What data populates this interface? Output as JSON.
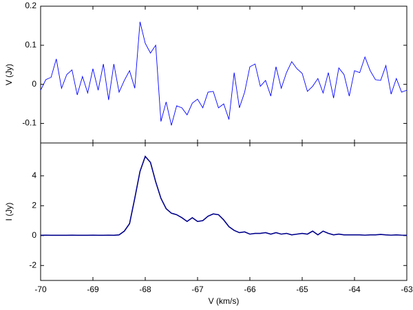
{
  "chart_data": [
    {
      "type": "line",
      "ylabel": "V (Jy)",
      "x": [
        -70,
        -69.9,
        -69.8,
        -69.7,
        -69.6,
        -69.5,
        -69.4,
        -69.3,
        -69.2,
        -69.1,
        -69,
        -68.9,
        -68.8,
        -68.7,
        -68.6,
        -68.5,
        -68.4,
        -68.3,
        -68.2,
        -68.1,
        -68,
        -67.9,
        -67.8,
        -67.7,
        -67.6,
        -67.5,
        -67.4,
        -67.3,
        -67.2,
        -67.1,
        -67,
        -66.9,
        -66.8,
        -66.7,
        -66.6,
        -66.5,
        -66.4,
        -66.3,
        -66.2,
        -66.1,
        -66,
        -65.9,
        -65.8,
        -65.7,
        -65.6,
        -65.5,
        -65.4,
        -65.3,
        -65.2,
        -65.1,
        -65,
        -64.9,
        -64.8,
        -64.7,
        -64.6,
        -64.5,
        -64.4,
        -64.3,
        -64.2,
        -64.1,
        -64,
        -63.9,
        -63.8,
        -63.7,
        -63.6,
        -63.5,
        -63.4,
        -63.3,
        -63.2,
        -63.1,
        -63
      ],
      "series": [
        {
          "color": "#0000ff",
          "values": [
            -0.015,
            0.012,
            0.018,
            0.065,
            -0.01,
            0.025,
            0.037,
            -0.027,
            0.02,
            -0.022,
            0.04,
            -0.015,
            0.052,
            -0.04,
            0.052,
            -0.02,
            0.01,
            0.035,
            -0.01,
            0.16,
            0.105,
            0.08,
            0.1,
            -0.095,
            -0.045,
            -0.105,
            -0.055,
            -0.06,
            -0.078,
            -0.048,
            -0.038,
            -0.06,
            -0.02,
            -0.018,
            -0.06,
            -0.05,
            -0.09,
            0.03,
            -0.06,
            -0.02,
            0.045,
            0.052,
            -0.005,
            0.01,
            -0.03,
            0.045,
            -0.01,
            0.03,
            0.058,
            0.04,
            0.028,
            -0.018,
            -0.005,
            0.015,
            -0.022,
            0.03,
            -0.035,
            0.042,
            0.025,
            -0.03,
            0.035,
            0.03,
            0.07,
            0.035,
            0.012,
            0.01,
            0.048,
            -0.025,
            0.015,
            -0.02,
            -0.015
          ]
        }
      ],
      "xlim": [
        -70,
        -63
      ],
      "xticks": [
        -70,
        -69,
        -68,
        -67,
        -66,
        -65,
        -64,
        -63
      ],
      "ylim": [
        -0.15,
        0.2
      ],
      "yticks": [
        -0.1,
        0,
        0.1,
        0.2
      ]
    },
    {
      "type": "line",
      "ylabel": "I (Jy)",
      "xlabel": "V (km/s)",
      "x": [
        -70,
        -69.9,
        -69.8,
        -69.7,
        -69.6,
        -69.5,
        -69.4,
        -69.3,
        -69.2,
        -69.1,
        -69,
        -68.9,
        -68.8,
        -68.7,
        -68.6,
        -68.5,
        -68.4,
        -68.3,
        -68.2,
        -68.1,
        -68,
        -67.9,
        -67.8,
        -67.7,
        -67.6,
        -67.5,
        -67.4,
        -67.3,
        -67.2,
        -67.1,
        -67,
        -66.9,
        -66.8,
        -66.7,
        -66.6,
        -66.5,
        -66.4,
        -66.3,
        -66.2,
        -66.1,
        -66,
        -65.9,
        -65.8,
        -65.7,
        -65.6,
        -65.5,
        -65.4,
        -65.3,
        -65.2,
        -65.1,
        -65,
        -64.9,
        -64.8,
        -64.7,
        -64.6,
        -64.5,
        -64.4,
        -64.3,
        -64.2,
        -64.1,
        -64,
        -63.9,
        -63.8,
        -63.7,
        -63.6,
        -63.5,
        -63.4,
        -63.3,
        -63.2,
        -63.1,
        -63
      ],
      "series": [
        {
          "color": "#00008b",
          "values": [
            0.02,
            0.03,
            0.02,
            0.02,
            0.02,
            0.02,
            0.03,
            0.02,
            0.02,
            0.02,
            0.03,
            0.02,
            0.02,
            0.03,
            0.02,
            0.05,
            0.3,
            0.8,
            2.5,
            4.3,
            5.3,
            4.9,
            3.6,
            2.5,
            1.8,
            1.5,
            1.4,
            1.2,
            0.95,
            1.2,
            0.95,
            1,
            1.3,
            1.45,
            1.4,
            1.05,
            0.6,
            0.35,
            0.2,
            0.25,
            0.1,
            0.15,
            0.15,
            0.2,
            0.1,
            0.2,
            0.1,
            0.15,
            0.05,
            0.1,
            0.15,
            0.1,
            0.3,
            0.05,
            0.3,
            0.15,
            0.05,
            0.1,
            0.05,
            0.05,
            0.05,
            0.05,
            0.03,
            0.05,
            0.05,
            0.08,
            0.05,
            0.03,
            0.05,
            0.03,
            0.02
          ]
        }
      ],
      "xlim": [
        -70,
        -63
      ],
      "xticks": [
        -70,
        -69,
        -68,
        -67,
        -66,
        -65,
        -64,
        -63
      ],
      "ylim": [
        -3,
        6.2
      ],
      "yticks": [
        -2,
        0,
        2,
        4
      ]
    }
  ]
}
